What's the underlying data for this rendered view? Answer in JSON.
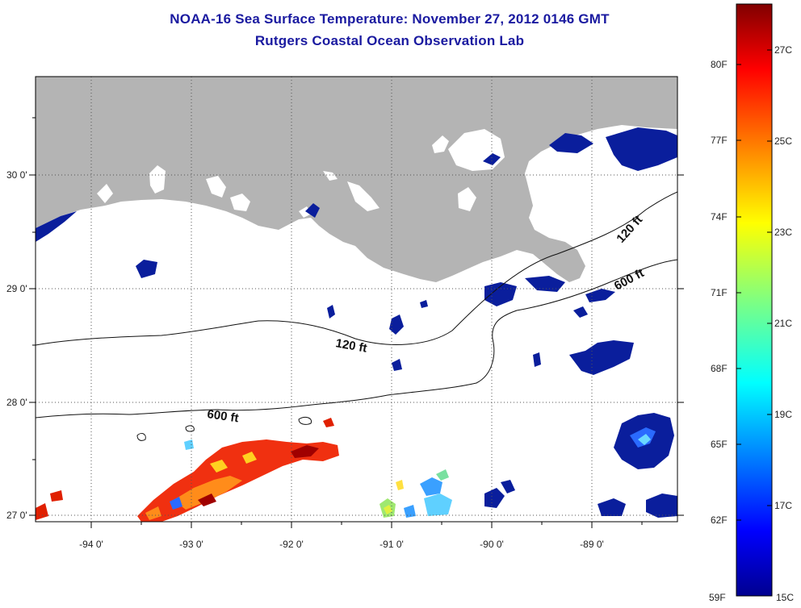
{
  "title": "NOAA-16 Sea Surface Temperature:  November 27, 2012 0146 GMT",
  "subtitle": "Rutgers Coastal Ocean Observation Lab",
  "colors": {
    "land": "#b4b4b4",
    "ocean_nodata": "#ffffff",
    "title": "#1a1aa0",
    "contour": "#111111"
  },
  "map": {
    "lat_ticks": [
      "30 0'",
      "29 0'",
      "28 0'",
      "27 0'"
    ],
    "lon_ticks": [
      "-94 0'",
      "-93 0'",
      "-92 0'",
      "-91 0'",
      "-90 0'",
      "-89 0'"
    ],
    "grid": "dotted",
    "contour_labels": [
      "120 ft",
      "120 ft",
      "600 ft",
      "600 ft"
    ]
  },
  "colorbar": {
    "fahrenheit_labels": [
      "80F",
      "77F",
      "74F",
      "71F",
      "68F",
      "65F",
      "62F",
      "59F"
    ],
    "celsius_labels": [
      "27C",
      "25C",
      "23C",
      "21C",
      "19C",
      "17C",
      "15C"
    ],
    "colormap": [
      "#00008f",
      "#0000ff",
      "#0080ff",
      "#00ffff",
      "#80ff80",
      "#ffff00",
      "#ff8000",
      "#ff0000",
      "#800000"
    ]
  }
}
